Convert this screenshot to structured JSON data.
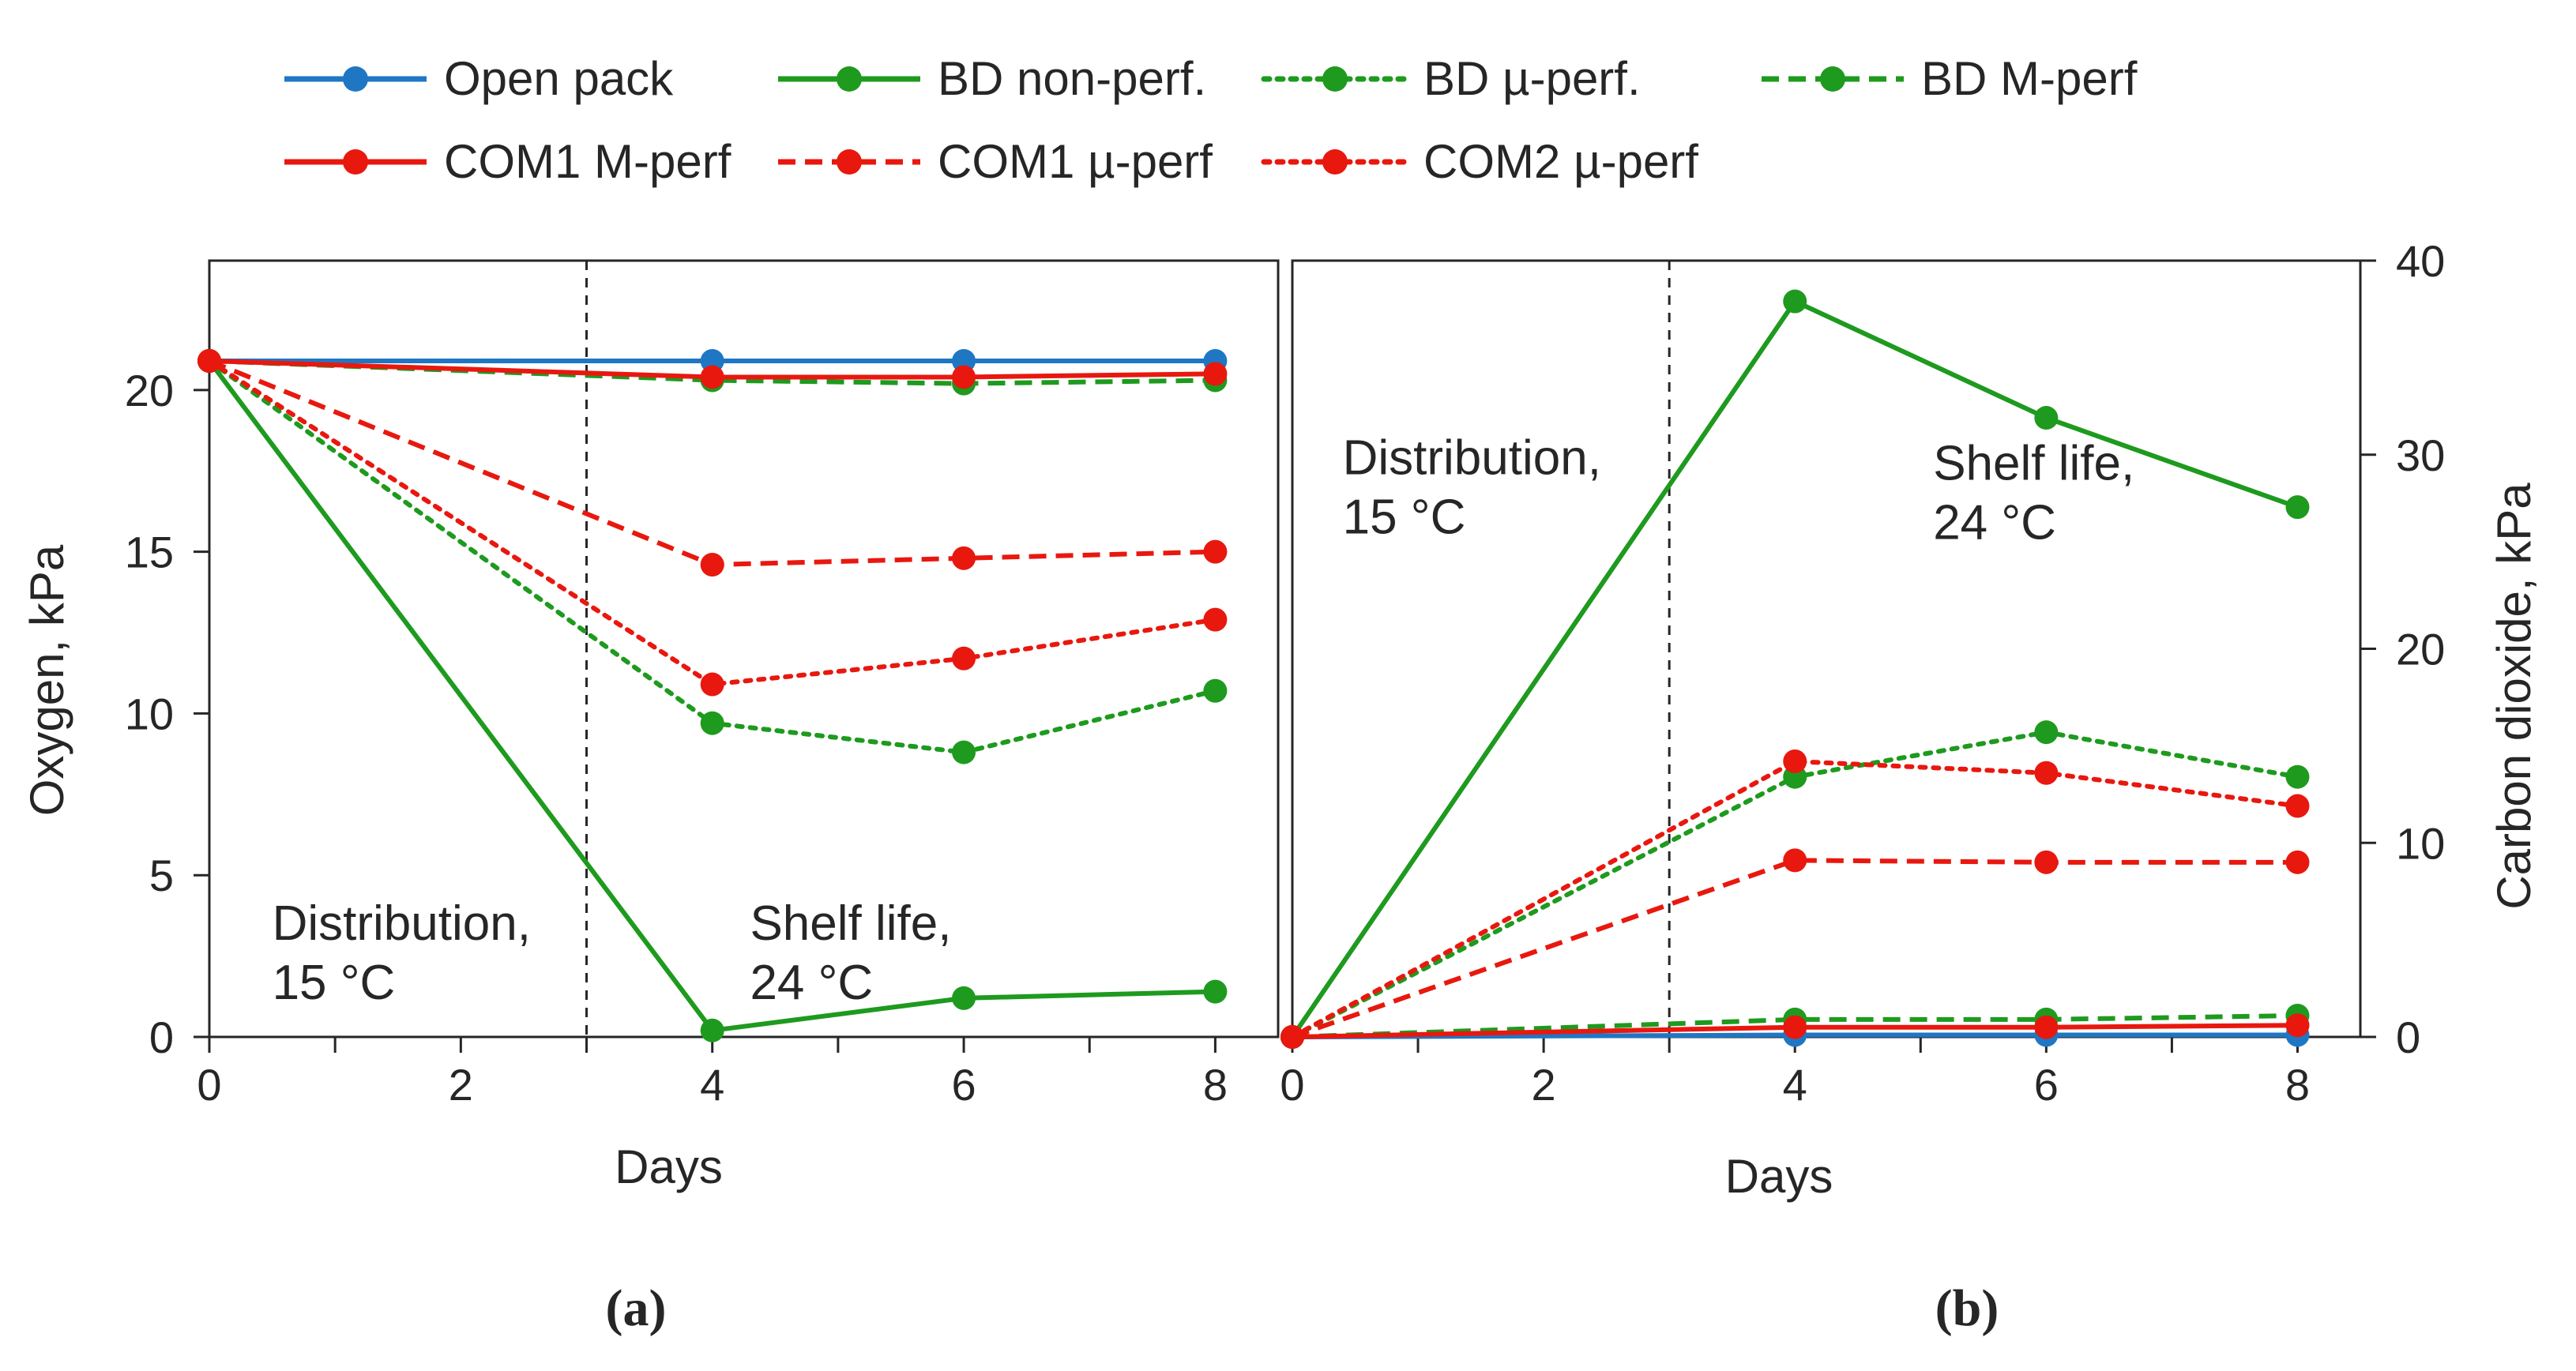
{
  "colors": {
    "blue": "#1f77c4",
    "green": "#1e9a1e",
    "red": "#e8180f"
  },
  "legend": [
    {
      "label": "Open pack",
      "color": "#1f77c4",
      "dash": "solid"
    },
    {
      "label": "BD non-perf.",
      "color": "#1e9a1e",
      "dash": "solid"
    },
    {
      "label": "BD µ-perf.",
      "color": "#1e9a1e",
      "dash": "dotted"
    },
    {
      "label": "BD M-perf",
      "color": "#1e9a1e",
      "dash": "dashed"
    },
    {
      "label": "COM1 M-perf",
      "color": "#e8180f",
      "dash": "solid"
    },
    {
      "label": "COM1 µ-perf",
      "color": "#e8180f",
      "dash": "dashed"
    },
    {
      "label": "COM2 µ-perf",
      "color": "#e8180f",
      "dash": "dotted"
    }
  ],
  "chart_data": [
    {
      "panel": "(a)",
      "type": "line",
      "title": "",
      "xlabel": "Days",
      "ylabel": "Oxygen, kPa",
      "xlim": [
        0,
        8.5
      ],
      "ylim": [
        0,
        24
      ],
      "x_major_ticks": [
        0,
        2,
        4,
        6,
        8
      ],
      "x_minor_ticks": [
        1,
        3,
        5,
        7
      ],
      "y_ticks": [
        0,
        5,
        10,
        15,
        20
      ],
      "x": [
        0,
        4,
        6,
        8
      ],
      "phase_boundary_day": 3,
      "annotations": [
        {
          "lines": [
            "Distribution,",
            "15 °C"
          ],
          "at": [
            0.5,
            3
          ]
        },
        {
          "lines": [
            "Shelf life,",
            "24 °C"
          ],
          "at": [
            4.3,
            3
          ]
        }
      ],
      "series": [
        {
          "name": "Open pack",
          "color": "#1f77c4",
          "dash": "solid",
          "values": [
            20.9,
            20.9,
            20.9,
            20.9
          ]
        },
        {
          "name": "BD non-perf.",
          "color": "#1e9a1e",
          "dash": "solid",
          "values": [
            20.9,
            0.2,
            1.2,
            1.4
          ]
        },
        {
          "name": "BD µ-perf.",
          "color": "#1e9a1e",
          "dash": "dotted",
          "values": [
            20.9,
            9.7,
            8.8,
            10.7
          ]
        },
        {
          "name": "BD M-perf",
          "color": "#1e9a1e",
          "dash": "dashed",
          "values": [
            20.9,
            20.3,
            20.2,
            20.3
          ]
        },
        {
          "name": "COM1 M-perf",
          "color": "#e8180f",
          "dash": "solid",
          "values": [
            20.9,
            20.4,
            20.4,
            20.5
          ]
        },
        {
          "name": "COM1 µ-perf",
          "color": "#e8180f",
          "dash": "dashed",
          "values": [
            20.9,
            14.6,
            14.8,
            15.0
          ]
        },
        {
          "name": "COM2 µ-perf",
          "color": "#e8180f",
          "dash": "dotted",
          "values": [
            20.9,
            10.9,
            11.7,
            12.9
          ]
        }
      ]
    },
    {
      "panel": "(b)",
      "type": "line",
      "title": "",
      "xlabel": "Days",
      "ylabel": "Carbon dioxide, kPa",
      "y_axis_side": "right",
      "xlim": [
        0,
        8.5
      ],
      "ylim": [
        0,
        40
      ],
      "x_major_ticks": [
        0,
        2,
        4,
        6,
        8
      ],
      "x_minor_ticks": [
        1,
        3,
        5,
        7
      ],
      "y_ticks": [
        0,
        10,
        20,
        30,
        40
      ],
      "x": [
        0,
        4,
        6,
        8
      ],
      "phase_boundary_day": 3,
      "annotations": [
        {
          "lines": [
            "Distribution,",
            "15 °C"
          ],
          "at": [
            0.4,
            29
          ]
        },
        {
          "lines": [
            "Shelf life,",
            "24 °C"
          ],
          "at": [
            5.1,
            28.7
          ]
        }
      ],
      "series": [
        {
          "name": "Open pack",
          "color": "#1f77c4",
          "dash": "solid",
          "values": [
            0,
            0.1,
            0.1,
            0.1
          ]
        },
        {
          "name": "BD non-perf.",
          "color": "#1e9a1e",
          "dash": "solid",
          "values": [
            0,
            37.9,
            31.9,
            27.3
          ]
        },
        {
          "name": "BD µ-perf.",
          "color": "#1e9a1e",
          "dash": "dotted",
          "values": [
            0,
            13.4,
            15.7,
            13.4
          ]
        },
        {
          "name": "BD M-perf",
          "color": "#1e9a1e",
          "dash": "dashed",
          "values": [
            0,
            0.9,
            0.9,
            1.1
          ]
        },
        {
          "name": "COM1 M-perf",
          "color": "#e8180f",
          "dash": "solid",
          "values": [
            0,
            0.5,
            0.5,
            0.6
          ]
        },
        {
          "name": "COM1 µ-perf",
          "color": "#e8180f",
          "dash": "dashed",
          "values": [
            0,
            9.1,
            9.0,
            9.0
          ]
        },
        {
          "name": "COM2 µ-perf",
          "color": "#e8180f",
          "dash": "dotted",
          "values": [
            0,
            14.2,
            13.6,
            11.9
          ]
        }
      ]
    }
  ]
}
